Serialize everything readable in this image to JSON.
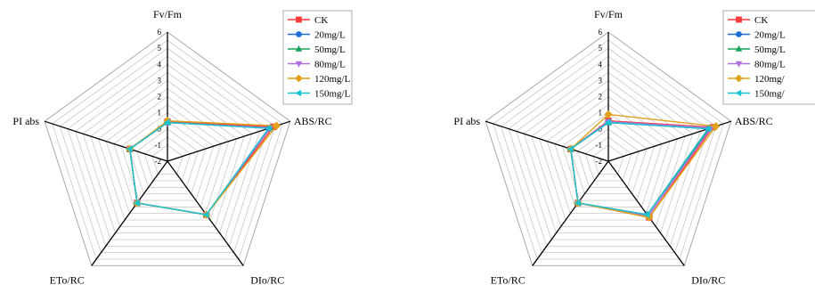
{
  "chart_data": [
    {
      "type": "radar",
      "axes": [
        "Fv/Fm",
        "ABS/RC",
        "DIo/RC",
        "ETo/RC",
        "PI abs"
      ],
      "ticks": [
        "-2",
        "-1",
        "0",
        "1",
        "2",
        "3",
        "4",
        "5",
        "6"
      ],
      "rlim": [
        -2,
        6
      ],
      "grid": true,
      "legend_position": "top-right",
      "series": [
        {
          "name": "CK",
          "color": "#ff3b3b",
          "marker": "square",
          "values": [
            0.45,
            4.9,
            2.1,
            1.2,
            0.45
          ]
        },
        {
          "name": "20mg/L",
          "color": "#1f6fd6",
          "marker": "circle",
          "values": [
            0.4,
            4.6,
            2.1,
            1.2,
            0.45
          ]
        },
        {
          "name": "50mg/L",
          "color": "#18a35a",
          "marker": "triangle-up",
          "values": [
            0.4,
            4.7,
            2.1,
            1.2,
            0.45
          ]
        },
        {
          "name": "80mg/L",
          "color": "#b070e0",
          "marker": "triangle-down",
          "values": [
            0.4,
            4.7,
            2.1,
            1.2,
            0.45
          ]
        },
        {
          "name": "120mg/L",
          "color": "#e0a21a",
          "marker": "diamond",
          "values": [
            0.5,
            5.1,
            2.1,
            1.2,
            0.45
          ]
        },
        {
          "name": "150mg/L",
          "color": "#19c3cf",
          "marker": "triangle-left",
          "values": [
            0.4,
            4.6,
            2.1,
            1.2,
            0.45
          ]
        }
      ]
    },
    {
      "type": "radar",
      "axes": [
        "Fv/Fm",
        "ABS/RC",
        "DIo/RC",
        "ETo/RC",
        "PI abs"
      ],
      "ticks": [
        "-2",
        "-1",
        "0",
        "1",
        "2",
        "3",
        "4",
        "5",
        "6"
      ],
      "rlim": [
        -2,
        6
      ],
      "grid": true,
      "legend_position": "top-right",
      "series": [
        {
          "name": "CK",
          "color": "#ff3b3b",
          "marker": "square",
          "values": [
            0.5,
            4.8,
            2.3,
            1.2,
            0.45
          ]
        },
        {
          "name": "20mg/L",
          "color": "#1f6fd6",
          "marker": "circle",
          "values": [
            0.4,
            4.5,
            2.1,
            1.2,
            0.45
          ]
        },
        {
          "name": "50mg/L",
          "color": "#18a35a",
          "marker": "triangle-up",
          "values": [
            0.4,
            4.6,
            2.1,
            1.2,
            0.45
          ]
        },
        {
          "name": "80mg/L",
          "color": "#b070e0",
          "marker": "triangle-down",
          "values": [
            0.45,
            4.7,
            2.2,
            1.2,
            0.45
          ]
        },
        {
          "name": "120mg/",
          "color": "#e0a21a",
          "marker": "diamond",
          "values": [
            0.9,
            5.0,
            2.3,
            1.2,
            0.45
          ]
        },
        {
          "name": "150mg/",
          "color": "#19c3cf",
          "marker": "triangle-left",
          "values": [
            0.4,
            4.5,
            2.1,
            1.2,
            0.45
          ]
        }
      ]
    }
  ]
}
